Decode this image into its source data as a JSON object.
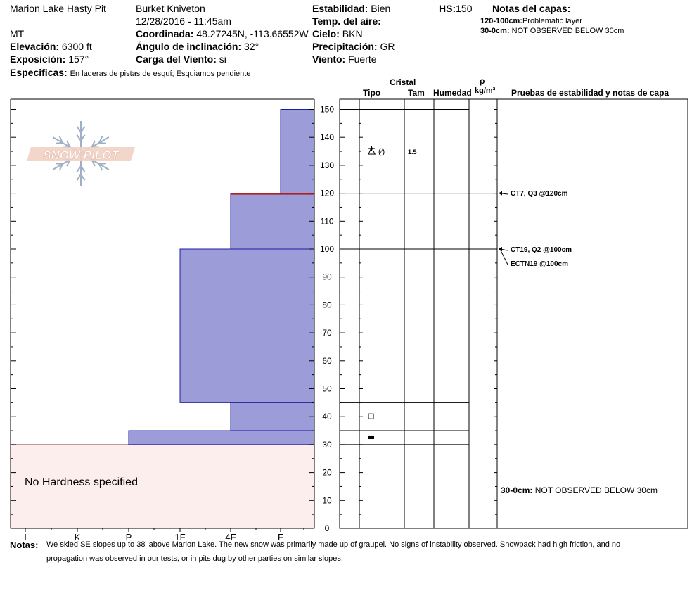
{
  "header": {
    "site": "Marion Lake Hasty Pit",
    "state": "MT",
    "observer": "Burket Kniveton",
    "datetime": "12/28/2016 - 11:45am",
    "elevation_label": "Elevación:",
    "elevation_value": "6300 ft",
    "exposure_label": "Exposición:",
    "exposure_value": "157°",
    "specifics_label": "Especificas:",
    "specifics_value": "En laderas de pistas de esquí; Esquiamos pendiente",
    "coord_label": "Coordinada:",
    "coord_value": "48.27245N, -113.66552W",
    "slope_label": "Ángulo de inclinación:",
    "slope_value": "32°",
    "wind_load_label": "Carga del Viento:",
    "wind_load_value": "si",
    "stability_label": "Estabilidad:",
    "stability_value": "Bien",
    "air_temp_label": "Temp. del aire:",
    "sky_label": "Cielo:",
    "sky_value": "BKN",
    "precip_label": "Precipitación:",
    "precip_value": "GR",
    "wind_label": "Viento:",
    "wind_value": "Fuerte",
    "hs_label": "HS:",
    "hs_value": "150",
    "layer_notes_title": "Notas del capas:",
    "layer_notes": [
      {
        "range": "120-100cm:",
        "text": "Problematic layer"
      },
      {
        "range": "30-0cm:",
        "text": "NOT OBSERVED BELOW 30cm"
      }
    ]
  },
  "columns": {
    "crystal": "Cristal",
    "type": "Tipo",
    "size": "Tam",
    "moisture": "Humedad",
    "rho": "ρ",
    "density_unit": "kg/m³",
    "tests": "Pruebas de estabilidad y notas de capa"
  },
  "logo_text": "SNOW PILOT",
  "no_hardness_text": "No Hardness specified",
  "crystal_size": "1.5",
  "stability_tests": [
    "CT7, Q3 @120cm",
    "CT19, Q2 @100cm",
    "ECTN19 @100cm"
  ],
  "bottom_note": {
    "range": "30-0cm:",
    "text": "NOT OBSERVED BELOW 30cm"
  },
  "notes_label": "Notas:",
  "notes_line1": "We skied SE slopes up to 38' above Marion Lake. The new snow was primarily made up of graupel. No signs of instability observed. Snowpack had high friction, and no",
  "notes_line2": "propagation was observed in our tests, or in pits dug by other parties on similar slopes.",
  "colors": {
    "layer_fill": "#9c9cd8",
    "layer_edge": "#1c1ca0",
    "weak_layer": "#b02020",
    "no_data_fill": "#fdeeee"
  },
  "chart_data": {
    "type": "bar",
    "orientation": "horizontal",
    "x_categories": [
      "I",
      "K",
      "P",
      "1F",
      "4F",
      "F"
    ],
    "xlabel": "",
    "ylabel": "",
    "ylim": [
      0,
      155
    ],
    "yticks": [
      0,
      10,
      20,
      30,
      40,
      50,
      60,
      70,
      80,
      90,
      100,
      110,
      120,
      130,
      140,
      150
    ],
    "layers": [
      {
        "top": 150,
        "bottom": 120,
        "hardness": "F"
      },
      {
        "top": 120,
        "bottom": 100,
        "hardness": "4F"
      },
      {
        "top": 100,
        "bottom": 45,
        "hardness": "1F"
      },
      {
        "top": 45,
        "bottom": 35,
        "hardness": "4F"
      },
      {
        "top": 35,
        "bottom": 30,
        "hardness": "P"
      }
    ],
    "weak_layer_depth": 120,
    "no_data_range": [
      0,
      30
    ],
    "layer_boundaries": [
      150,
      120,
      100,
      45,
      35,
      30
    ],
    "grain_markers": [
      {
        "depth": 135,
        "symbol": "graupel"
      },
      {
        "depth": 40,
        "symbol": "faceted"
      },
      {
        "depth": 32.5,
        "symbol": "crust"
      }
    ],
    "test_depths": [
      120,
      100
    ]
  }
}
